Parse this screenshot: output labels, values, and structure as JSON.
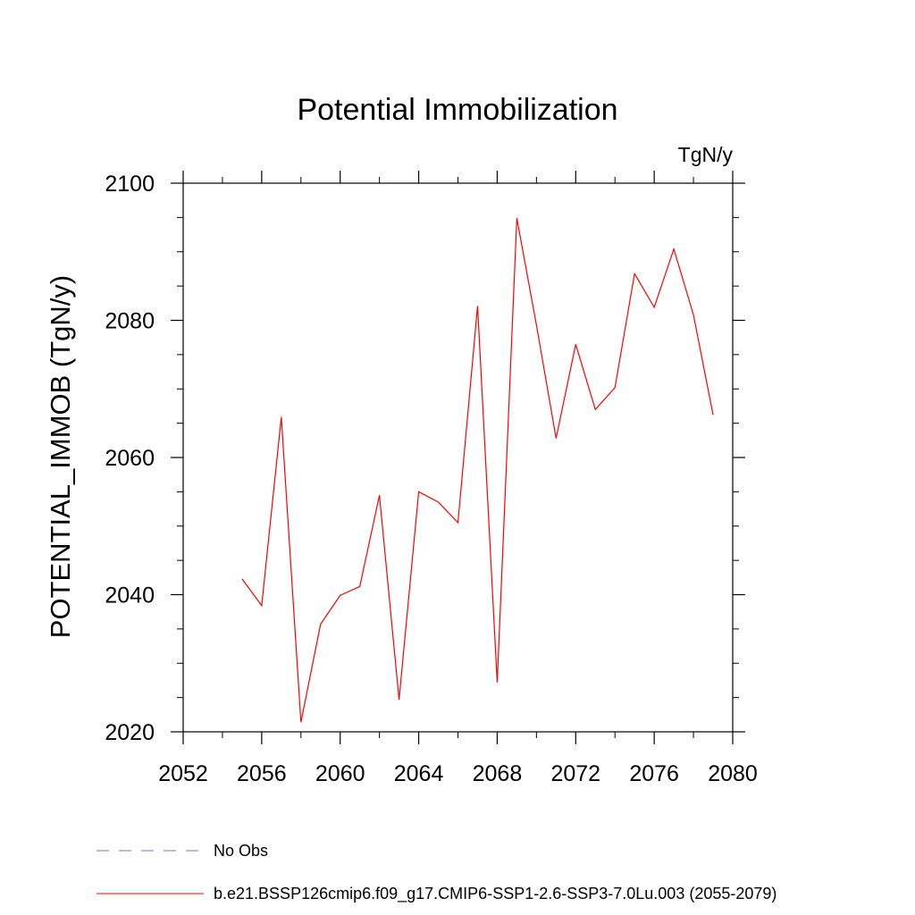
{
  "chart_data": {
    "type": "line",
    "title": "Potential Immobilization",
    "units": "TgN/y",
    "xlabel": "",
    "ylabel": "POTENTIAL_IMMOB  (TgN/y)",
    "xlim": [
      2052,
      2080
    ],
    "ylim": [
      2020,
      2100
    ],
    "x_ticks": [
      2052,
      2056,
      2060,
      2064,
      2068,
      2072,
      2076,
      2080
    ],
    "x_minor_ticks": [
      2054,
      2058,
      2062,
      2066,
      2070,
      2074,
      2078
    ],
    "y_ticks": [
      2020,
      2040,
      2060,
      2080,
      2100
    ],
    "y_minor_ticks": [
      2025,
      2030,
      2035,
      2045,
      2050,
      2055,
      2065,
      2070,
      2075,
      2085,
      2090,
      2095
    ],
    "series": [
      {
        "name": "b.e21.BSSP126cmip6.f09_g17.CMIP6-SSP1-2.6-SSP3-7.0Lu.003 (2055-2079)",
        "color": "#ff0000",
        "x": [
          2055,
          2056,
          2057,
          2058,
          2059,
          2060,
          2061,
          2062,
          2063,
          2064,
          2065,
          2066,
          2067,
          2068,
          2069,
          2070,
          2071,
          2072,
          2073,
          2074,
          2075,
          2076,
          2077,
          2078,
          2079
        ],
        "values": [
          2042.3,
          2038.4,
          2065.9,
          2021.4,
          2035.7,
          2039.9,
          2041.2,
          2054.5,
          2024.7,
          2055.0,
          2053.5,
          2050.5,
          2082.1,
          2027.2,
          2094.9,
          2079.3,
          2062.8,
          2076.5,
          2067.0,
          2070.2,
          2086.8,
          2081.9,
          2090.4,
          2080.8,
          2066.2
        ]
      }
    ],
    "legend": [
      {
        "label": "No Obs",
        "style": "dashed",
        "color": "#7b6fc4"
      },
      {
        "label": "b.e21.BSSP126cmip6.f09_g17.CMIP6-SSP1-2.6-SSP3-7.0Lu.003 (2055-2079)",
        "style": "solid",
        "color": "#ff0000"
      }
    ],
    "legend_position": "bottom"
  }
}
